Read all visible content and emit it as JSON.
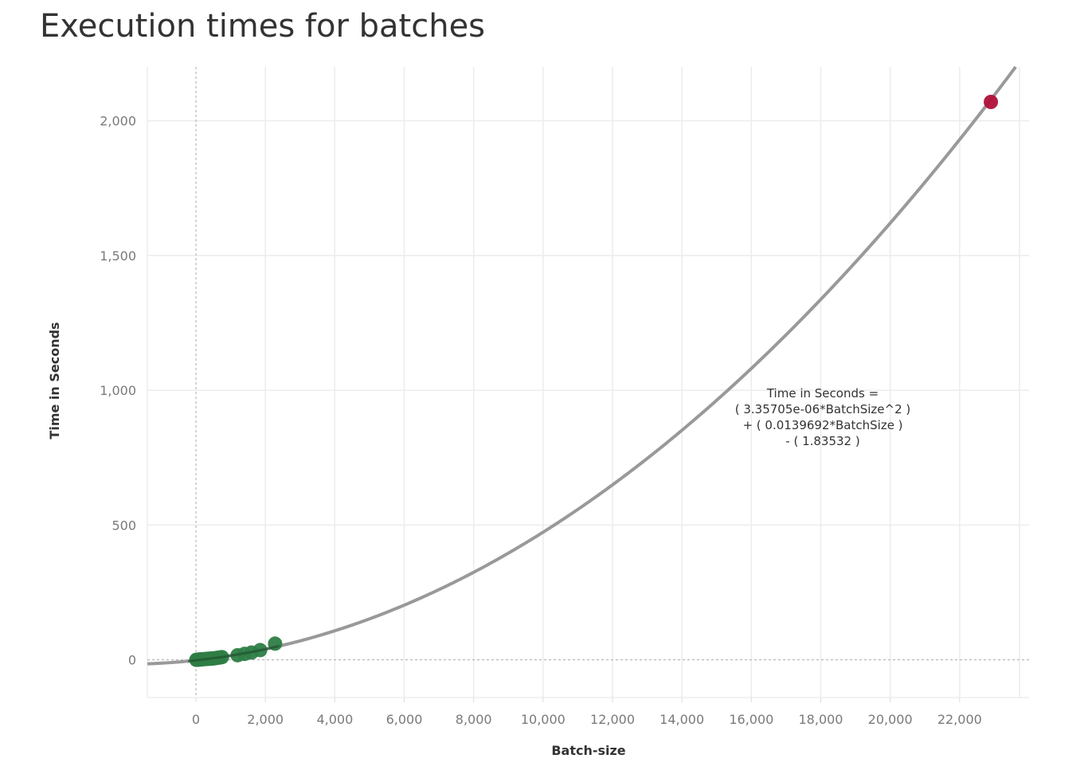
{
  "title": "Execution times for batches",
  "chart_data": {
    "type": "scatter",
    "title": "Execution times for batches",
    "xlabel": "Batch-size",
    "ylabel": "Time in Seconds",
    "xlim": [
      -1400,
      24000
    ],
    "ylim": [
      -140,
      2200
    ],
    "x_ticks": [
      0,
      2000,
      4000,
      6000,
      8000,
      10000,
      12000,
      14000,
      16000,
      18000,
      20000,
      22000
    ],
    "x_tick_labels": [
      "0",
      "2,000",
      "4,000",
      "6,000",
      "8,000",
      "10,000",
      "12,000",
      "14,000",
      "16,000",
      "18,000",
      "20,000",
      "22,000"
    ],
    "y_ticks": [
      0,
      500,
      1000,
      1500,
      2000
    ],
    "y_tick_labels": [
      "0",
      "500",
      "1,000",
      "1,500",
      "2,000"
    ],
    "grid": true,
    "trend_line": {
      "a": 3.35705e-06,
      "b": 0.0139692,
      "c": -1.83532,
      "color": "#999999"
    },
    "annotation": [
      "Time in Seconds =",
      "( 3.35705e-06*BatchSize^2 )",
      "+ ( 0.0139692*BatchSize )",
      "- ( 1.83532 )"
    ],
    "series": [
      {
        "color": "#2e7d46",
        "points": [
          {
            "x": 10,
            "y": 0
          },
          {
            "x": 40,
            "y": 0
          },
          {
            "x": 80,
            "y": 1
          },
          {
            "x": 120,
            "y": 1
          },
          {
            "x": 160,
            "y": 2
          },
          {
            "x": 200,
            "y": 2
          },
          {
            "x": 250,
            "y": 3
          },
          {
            "x": 300,
            "y": 3
          },
          {
            "x": 350,
            "y": 4
          },
          {
            "x": 400,
            "y": 4
          },
          {
            "x": 450,
            "y": 5
          },
          {
            "x": 500,
            "y": 5
          },
          {
            "x": 550,
            "y": 6
          },
          {
            "x": 600,
            "y": 7
          },
          {
            "x": 650,
            "y": 8
          },
          {
            "x": 700,
            "y": 9
          },
          {
            "x": 750,
            "y": 10
          },
          {
            "x": 1200,
            "y": 17
          },
          {
            "x": 1400,
            "y": 22
          },
          {
            "x": 1600,
            "y": 27
          },
          {
            "x": 1850,
            "y": 36
          },
          {
            "x": 2280,
            "y": 60
          }
        ]
      },
      {
        "color": "#b0103a",
        "points": [
          {
            "x": 22900,
            "y": 2070
          }
        ]
      }
    ]
  }
}
